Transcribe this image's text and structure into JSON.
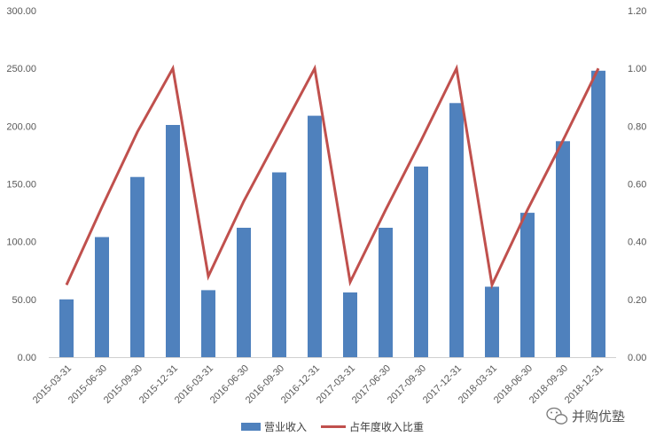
{
  "chart_data": {
    "type": "bar",
    "title": "",
    "categories": [
      "2015-03-31",
      "2015-06-30",
      "2015-09-30",
      "2015-12-31",
      "2016-03-31",
      "2016-06-30",
      "2016-09-30",
      "2016-12-31",
      "2017-03-31",
      "2017-06-30",
      "2017-09-30",
      "2017-12-31",
      "2018-03-31",
      "2018-06-30",
      "2018-09-30",
      "2018-12-31"
    ],
    "series": [
      {
        "name": "营业收入",
        "type": "bar",
        "axis": "left",
        "color": "#4F81BD",
        "values": [
          50,
          104,
          156,
          201,
          58,
          112,
          160,
          209,
          56,
          112,
          165,
          220,
          61,
          125,
          187,
          248
        ]
      },
      {
        "name": "占年度收入比重",
        "type": "line",
        "axis": "right",
        "color": "#C0504D",
        "values": [
          0.25,
          0.52,
          0.78,
          1.0,
          0.28,
          0.54,
          0.77,
          1.0,
          0.26,
          0.51,
          0.75,
          1.0,
          0.25,
          0.51,
          0.75,
          1.0
        ]
      }
    ],
    "y_left": {
      "min": 0,
      "max": 300,
      "step": 50,
      "tick_labels": [
        "0.00",
        "50.00",
        "100.00",
        "150.00",
        "200.00",
        "250.00",
        "300.00"
      ]
    },
    "y_right": {
      "min": 0,
      "max": 1.2,
      "step": 0.2,
      "tick_labels": [
        "0.00",
        "0.20",
        "0.40",
        "0.60",
        "0.80",
        "1.00",
        "1.20"
      ]
    },
    "grid": false,
    "legend_position": "bottom"
  },
  "watermark": {
    "text": "并购优塾",
    "icon": "wechat-icon"
  }
}
